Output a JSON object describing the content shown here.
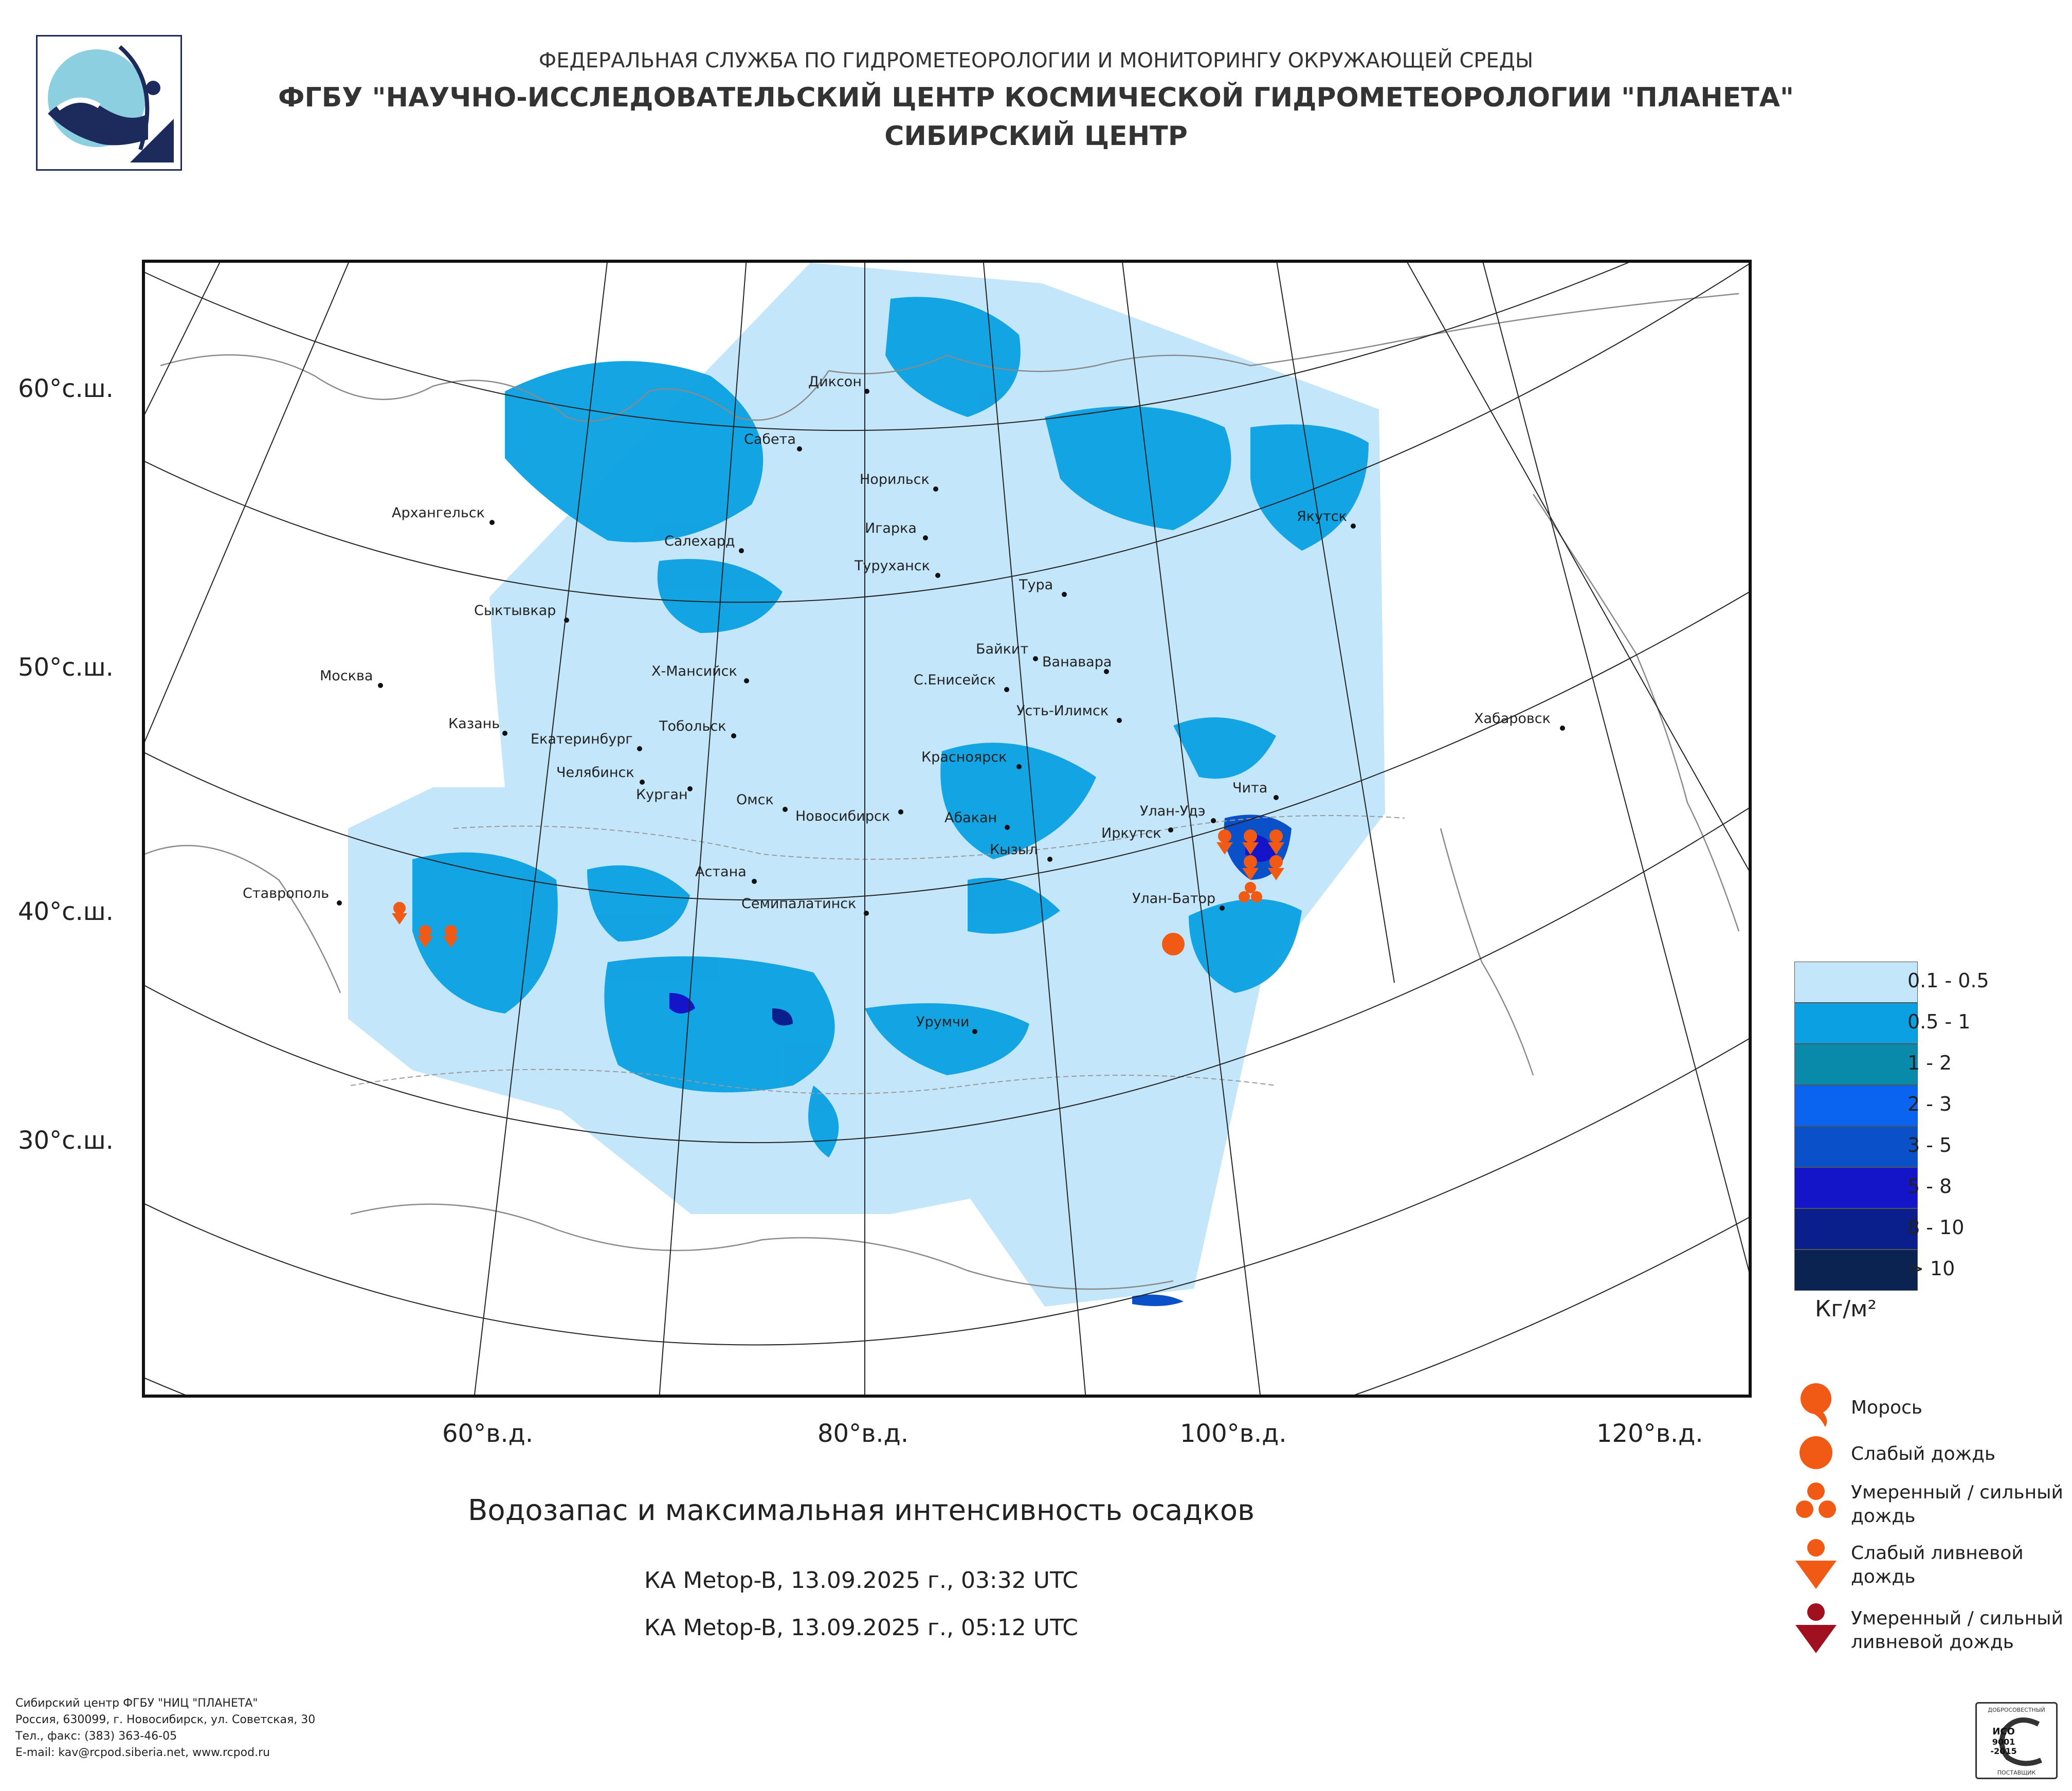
{
  "header": {
    "line1": "ФЕДЕРАЛЬНАЯ СЛУЖБА ПО ГИДРОМЕТЕОРОЛОГИИ И МОНИТОРИНГУ ОКРУЖАЮЩЕЙ СРЕДЫ",
    "line2": "ФГБУ \"НАУЧНО-ИССЛЕДОВАТЕЛЬСКИЙ ЦЕНТР КОСМИЧЕСКОЙ ГИДРОМЕТЕОРОЛОГИИ \"ПЛАНЕТА\"",
    "line3": "СИБИРСКИЙ ЦЕНТР"
  },
  "latitude_labels": [
    "60°с.ш.",
    "50°с.ш.",
    "40°с.ш.",
    "30°с.ш."
  ],
  "longitude_labels": [
    "60°в.д.",
    "80°в.д.",
    "100°в.д.",
    "120°в.д."
  ],
  "cities": [
    {
      "name": "Диксон"
    },
    {
      "name": "Сабета"
    },
    {
      "name": "Норильск"
    },
    {
      "name": "Архангельск"
    },
    {
      "name": "Игарка"
    },
    {
      "name": "Салехард"
    },
    {
      "name": "Туруханск"
    },
    {
      "name": "Якутск"
    },
    {
      "name": "Тура"
    },
    {
      "name": "Сыктывкар"
    },
    {
      "name": "Байкит"
    },
    {
      "name": "Ванавара"
    },
    {
      "name": "Х-Мансийск"
    },
    {
      "name": "С.Енисейск"
    },
    {
      "name": "Москва"
    },
    {
      "name": "Усть-Илимск"
    },
    {
      "name": "Хабаровск"
    },
    {
      "name": "Казань"
    },
    {
      "name": "Тобольск"
    },
    {
      "name": "Екатеринбург"
    },
    {
      "name": "Красноярск"
    },
    {
      "name": "Челябинск"
    },
    {
      "name": "Курган"
    },
    {
      "name": "Чита"
    },
    {
      "name": "Омск"
    },
    {
      "name": "Новосибирск"
    },
    {
      "name": "Абакан"
    },
    {
      "name": "Улан-Удэ"
    },
    {
      "name": "Иркутск"
    },
    {
      "name": "Кызыл"
    },
    {
      "name": "Астана"
    },
    {
      "name": "Ставрополь"
    },
    {
      "name": "Улан-Батор"
    },
    {
      "name": "Семипалатинск"
    },
    {
      "name": "Урумчи"
    }
  ],
  "legend": {
    "classes": [
      {
        "label": "0.1 - 0.5",
        "color": "#c4e6fa"
      },
      {
        "label": "0.5 - 1",
        "color": "#0aa0e2"
      },
      {
        "label": "1 - 2",
        "color": "#0a8aaa"
      },
      {
        "label": "2 - 3",
        "color": "#0a64f0"
      },
      {
        "label": "3 - 5",
        "color": "#0a50c8"
      },
      {
        "label": "5 - 8",
        "color": "#1414c8"
      },
      {
        "label": "8 - 10",
        "color": "#0a1e8c"
      },
      {
        "label": "> 10",
        "color": "#0a2350"
      }
    ],
    "unit": "Кг/м²"
  },
  "precip_symbols": [
    {
      "label": "Морось",
      "icon": "drizzle-icon",
      "color": "#f05a14"
    },
    {
      "label": "Слабый дождь",
      "icon": "light-rain-icon",
      "color": "#f05a14"
    },
    {
      "label": "Умеренный / сильный дождь",
      "icon": "moderate-rain-icon",
      "color": "#f05a14"
    },
    {
      "label": "Слабый ливневой дождь",
      "icon": "light-shower-icon",
      "color": "#f05a14"
    },
    {
      "label": "Умеренный / сильный ливневой дождь",
      "icon": "heavy-shower-icon",
      "color": "#a0101e"
    }
  ],
  "title": {
    "main": "Водозапас и максимальная интенсивность осадков",
    "pass1": "КА Metop-B, 13.09.2025 г., 03:32 UTC",
    "pass2": "КА Metop-B, 13.09.2025 г., 05:12 UTC"
  },
  "footer": {
    "org": "Сибирский центр ФГБУ \"НИЦ \"ПЛАНЕТА\"",
    "address": "Россия, 630099, г. Новосибирск, ул. Советская, 30",
    "phone": "Тел., факс: (383) 363-46-05",
    "email": "E-mail: kav@rcpod.siberia.net, www.rcpod.ru"
  },
  "iso_badge": {
    "top": "ДОБРОСОВЕСТНЫЙ",
    "mid1": "ИСО",
    "mid2": "9001",
    "mid3": "-2015",
    "bottom": "ПОСТАВЩИК"
  }
}
